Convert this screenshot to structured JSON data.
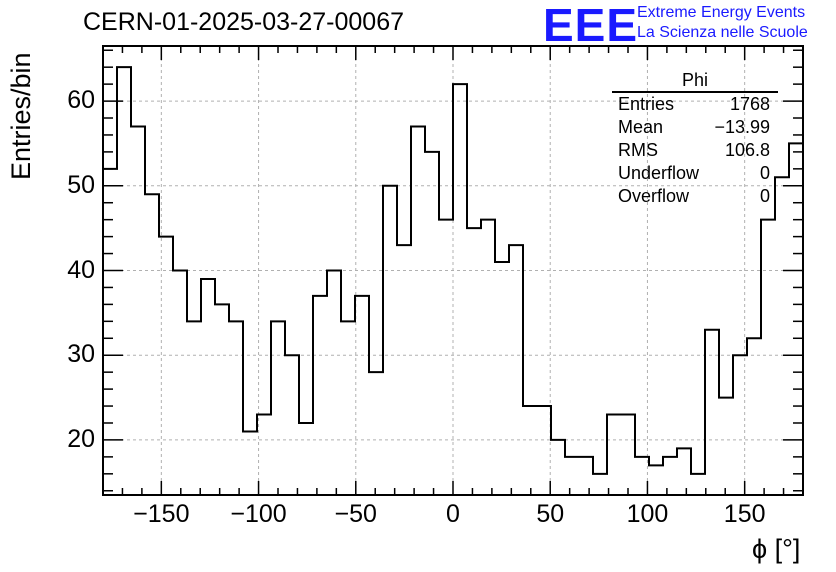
{
  "header": {
    "run_title": "CERN-01-2025-03-27-00067",
    "logo_text": "EEE",
    "logo_line1": "Extreme Energy Events",
    "logo_line2": "La Scienza nelle Scuole",
    "logo_color": "#1a1aff"
  },
  "stats": {
    "name": "Phi",
    "rows": [
      {
        "label": "Entries",
        "value": "1768"
      },
      {
        "label": "Mean",
        "value": "−13.99"
      },
      {
        "label": "RMS",
        "value": "106.8"
      },
      {
        "label": "Underflow",
        "value": "0"
      },
      {
        "label": "Overflow",
        "value": "0"
      }
    ]
  },
  "chart_data": {
    "type": "histogram",
    "xlabel": "ϕ [°]",
    "ylabel": "Entries/bin",
    "xlim": [
      -180,
      180
    ],
    "ylim": [
      13.5,
      66.5
    ],
    "grid": true,
    "bin_width": 7.2,
    "x_ticks": [
      -150,
      -100,
      -50,
      0,
      50,
      100,
      150
    ],
    "x_tick_labels": [
      "−150",
      "−100",
      "−50",
      "0",
      "50",
      "100",
      "150"
    ],
    "y_ticks": [
      20,
      30,
      40,
      50,
      60
    ],
    "y_tick_labels": [
      "20",
      "30",
      "40",
      "50",
      "60"
    ],
    "values": [
      52,
      64,
      57,
      49,
      44,
      40,
      34,
      39,
      36,
      34,
      21,
      23,
      34,
      30,
      22,
      37,
      40,
      34,
      37,
      28,
      50,
      43,
      57,
      54,
      46,
      62,
      45,
      46,
      41,
      43,
      24,
      24,
      20,
      18,
      18,
      16,
      23,
      23,
      18,
      17,
      18,
      19,
      16,
      33,
      25,
      30,
      32,
      46,
      51,
      55
    ]
  }
}
